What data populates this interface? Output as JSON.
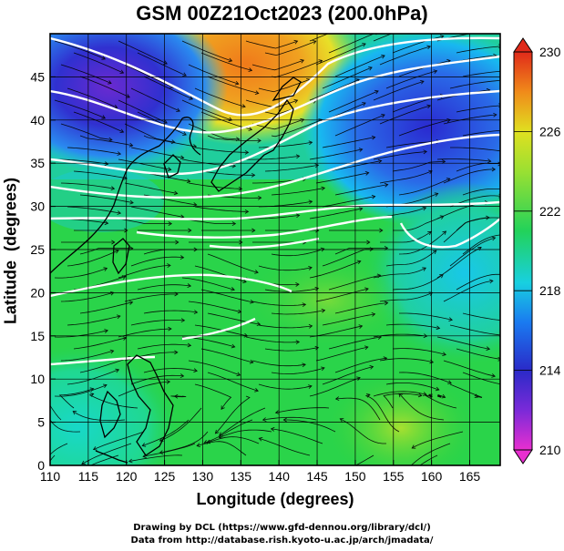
{
  "title": "GSM 00Z21Oct2023 (200.0hPa)",
  "xlabel": "Longitude (degrees)",
  "ylabel": "Latitude  (degrees)",
  "credits": {
    "line1": "Drawing by DCL (https://www.gfd-dennou.org/library/dcl/)",
    "line2": "Data from http://database.rish.kyoto-u.ac.jp/arch/jmadata/"
  },
  "map_data": {
    "type": "heatmap",
    "lon_range": [
      110,
      169
    ],
    "lat_range": [
      0,
      50
    ],
    "x_ticks": [
      "110",
      "115",
      "120",
      "125",
      "130",
      "135",
      "140",
      "145",
      "150",
      "155",
      "160",
      "165"
    ],
    "y_ticks": [
      "0",
      "5",
      "10",
      "15",
      "20",
      "25",
      "30",
      "35",
      "40",
      "45"
    ],
    "colorbar": {
      "range": [
        210,
        230
      ],
      "tick_labels": [
        "210",
        "214",
        "218",
        "222",
        "226",
        "230"
      ],
      "colors": [
        "#e82fd0",
        "#2a2ac8",
        "#18b8f0",
        "#2ad44a",
        "#c4e632",
        "#f08a1a",
        "#e02a1a"
      ]
    },
    "overlays": [
      "temperature-shading",
      "wind-streamlines",
      "isotach-contours",
      "coastlines",
      "grid"
    ]
  }
}
